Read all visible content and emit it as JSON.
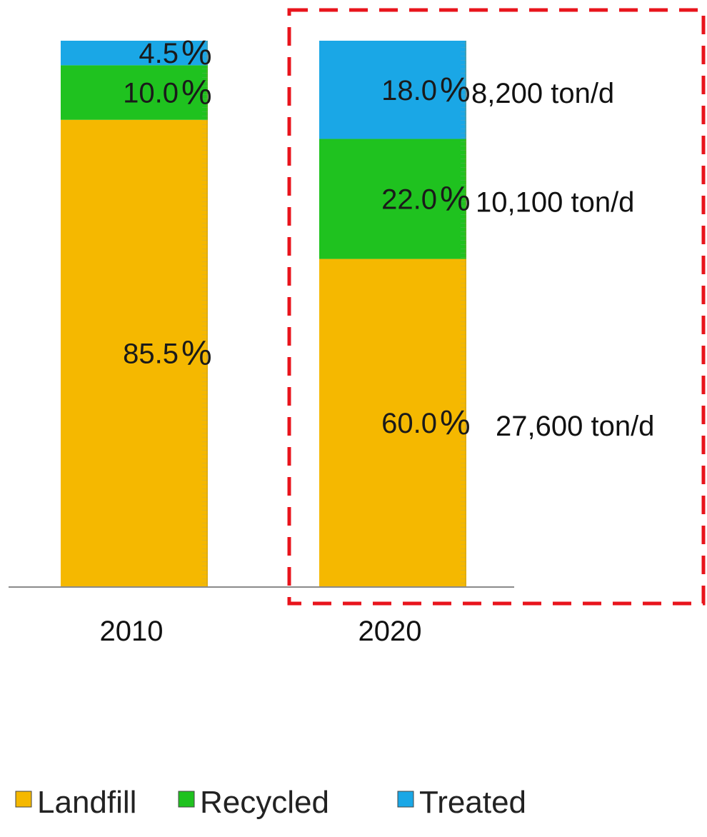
{
  "chart_data": {
    "type": "bar",
    "stacked": true,
    "categories": [
      "2010",
      "2020"
    ],
    "series": [
      {
        "name": "Landfill",
        "values": [
          85.5,
          60.0
        ],
        "color": "#f5b800",
        "labels": [
          "85.5",
          "60.0"
        ],
        "tons": [
          "",
          "27,600 ton/d"
        ]
      },
      {
        "name": "Recycled",
        "values": [
          10.0,
          22.0
        ],
        "color": "#1fc21f",
        "labels": [
          "10.0",
          "22.0"
        ],
        "tons": [
          "",
          "10,100 ton/d"
        ]
      },
      {
        "name": "Treated",
        "values": [
          4.5,
          18.0
        ],
        "color": "#1aa7e6",
        "labels": [
          "4.5",
          "18.0"
        ],
        "tons": [
          "",
          "8,200 ton/d"
        ]
      }
    ],
    "percent_symbol": "%",
    "ylim": [
      0,
      100
    ],
    "legend_position": "bottom-left",
    "highlight": {
      "category": "2020",
      "style": "dashed",
      "color": "#e8141c"
    }
  }
}
